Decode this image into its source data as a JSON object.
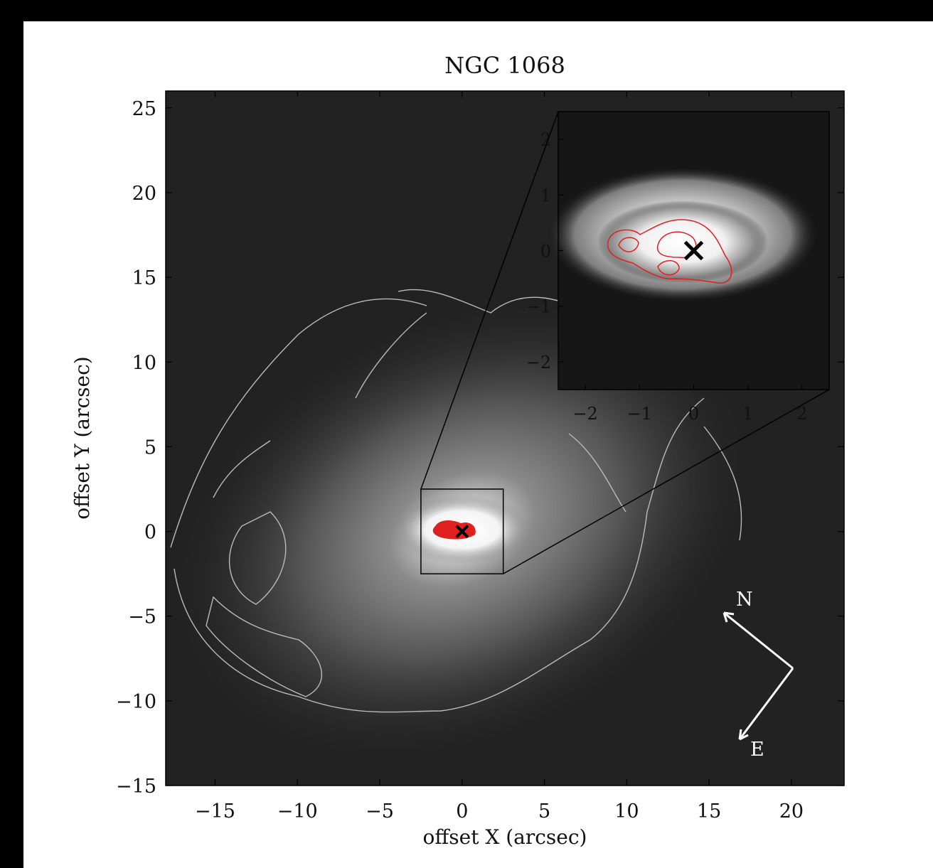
{
  "chart_data": {
    "type": "image",
    "title": "NGC 1068",
    "xlabel": "offset X (arcsec)",
    "ylabel": "offset Y (arcsec)",
    "xlim": [
      -18,
      23.2
    ],
    "ylim": [
      -15,
      26
    ],
    "xticks": [
      {
        "value": -15,
        "label": "−15"
      },
      {
        "value": -10,
        "label": "−10"
      },
      {
        "value": -5,
        "label": "−5"
      },
      0,
      5,
      10,
      15,
      20
    ],
    "yticks": [
      {
        "value": -15,
        "label": "−15"
      },
      {
        "value": -10,
        "label": "−10"
      },
      {
        "value": -5,
        "label": "−5"
      },
      0,
      5,
      10,
      15,
      20,
      25
    ],
    "marker": {
      "x": 0,
      "y": 0
    },
    "inset": {
      "xlim": [
        -2.5,
        2.5
      ],
      "ylim": [
        -2.5,
        2.5
      ],
      "xticks": [
        {
          "value": -2,
          "label": "−2"
        },
        {
          "value": -1,
          "label": "−1"
        },
        0,
        1,
        2
      ],
      "yticks": [
        {
          "value": -2,
          "label": "−2"
        },
        {
          "value": -1,
          "label": "−1"
        },
        0,
        1,
        2
      ]
    },
    "compass": {
      "north": "N",
      "east": "E"
    }
  }
}
